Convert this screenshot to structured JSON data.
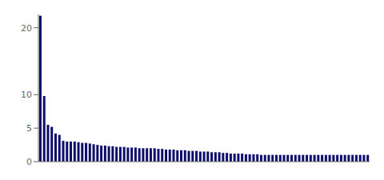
{
  "chart_data": {
    "type": "bar",
    "categories": [
      null,
      null,
      null,
      null,
      null,
      null,
      null,
      null,
      null,
      null,
      null,
      null,
      null,
      null,
      null,
      null,
      null,
      null,
      null,
      null,
      null,
      null,
      null,
      null,
      null,
      null,
      null,
      null,
      null,
      null,
      null,
      null,
      null,
      null,
      null,
      null,
      null,
      null,
      null,
      null,
      null,
      null,
      null,
      null,
      null,
      null,
      null,
      null,
      null,
      null,
      null,
      null,
      null,
      null,
      null,
      null,
      null,
      null,
      null,
      null,
      null,
      null,
      null,
      null,
      null,
      null,
      null,
      null,
      null,
      null,
      null,
      null,
      null,
      null,
      null,
      null,
      null,
      null,
      null,
      null,
      null,
      null,
      null,
      null,
      null,
      null,
      null
    ],
    "values": [
      21.8,
      9.8,
      5.5,
      5.2,
      4.2,
      4.0,
      3.1,
      3.0,
      3.0,
      3.0,
      2.9,
      2.8,
      2.8,
      2.7,
      2.6,
      2.5,
      2.4,
      2.4,
      2.3,
      2.3,
      2.2,
      2.2,
      2.2,
      2.1,
      2.1,
      2.1,
      2.0,
      2.0,
      2.0,
      2.0,
      2.0,
      1.9,
      1.9,
      1.8,
      1.8,
      1.8,
      1.7,
      1.7,
      1.7,
      1.6,
      1.6,
      1.6,
      1.5,
      1.5,
      1.5,
      1.4,
      1.4,
      1.4,
      1.3,
      1.3,
      1.2,
      1.2,
      1.2,
      1.2,
      1.1,
      1.1,
      1.1,
      1.1,
      1.0,
      1.0,
      1.0,
      1.0,
      1.0,
      1.0,
      1.0,
      1.0,
      1.0,
      1.0,
      1.0,
      1.0,
      1.0,
      1.0,
      1.0,
      1.0,
      1.0,
      1.0,
      1.0,
      1.0,
      1.0,
      1.0,
      1.0,
      1.0,
      1.0,
      1.0,
      1.0,
      1.0,
      1.0
    ],
    "color": "#0d0d6b",
    "ylim": [
      0,
      22
    ],
    "yticks": [
      0,
      5,
      10,
      20
    ],
    "grid": false,
    "tick_labels": "y"
  }
}
